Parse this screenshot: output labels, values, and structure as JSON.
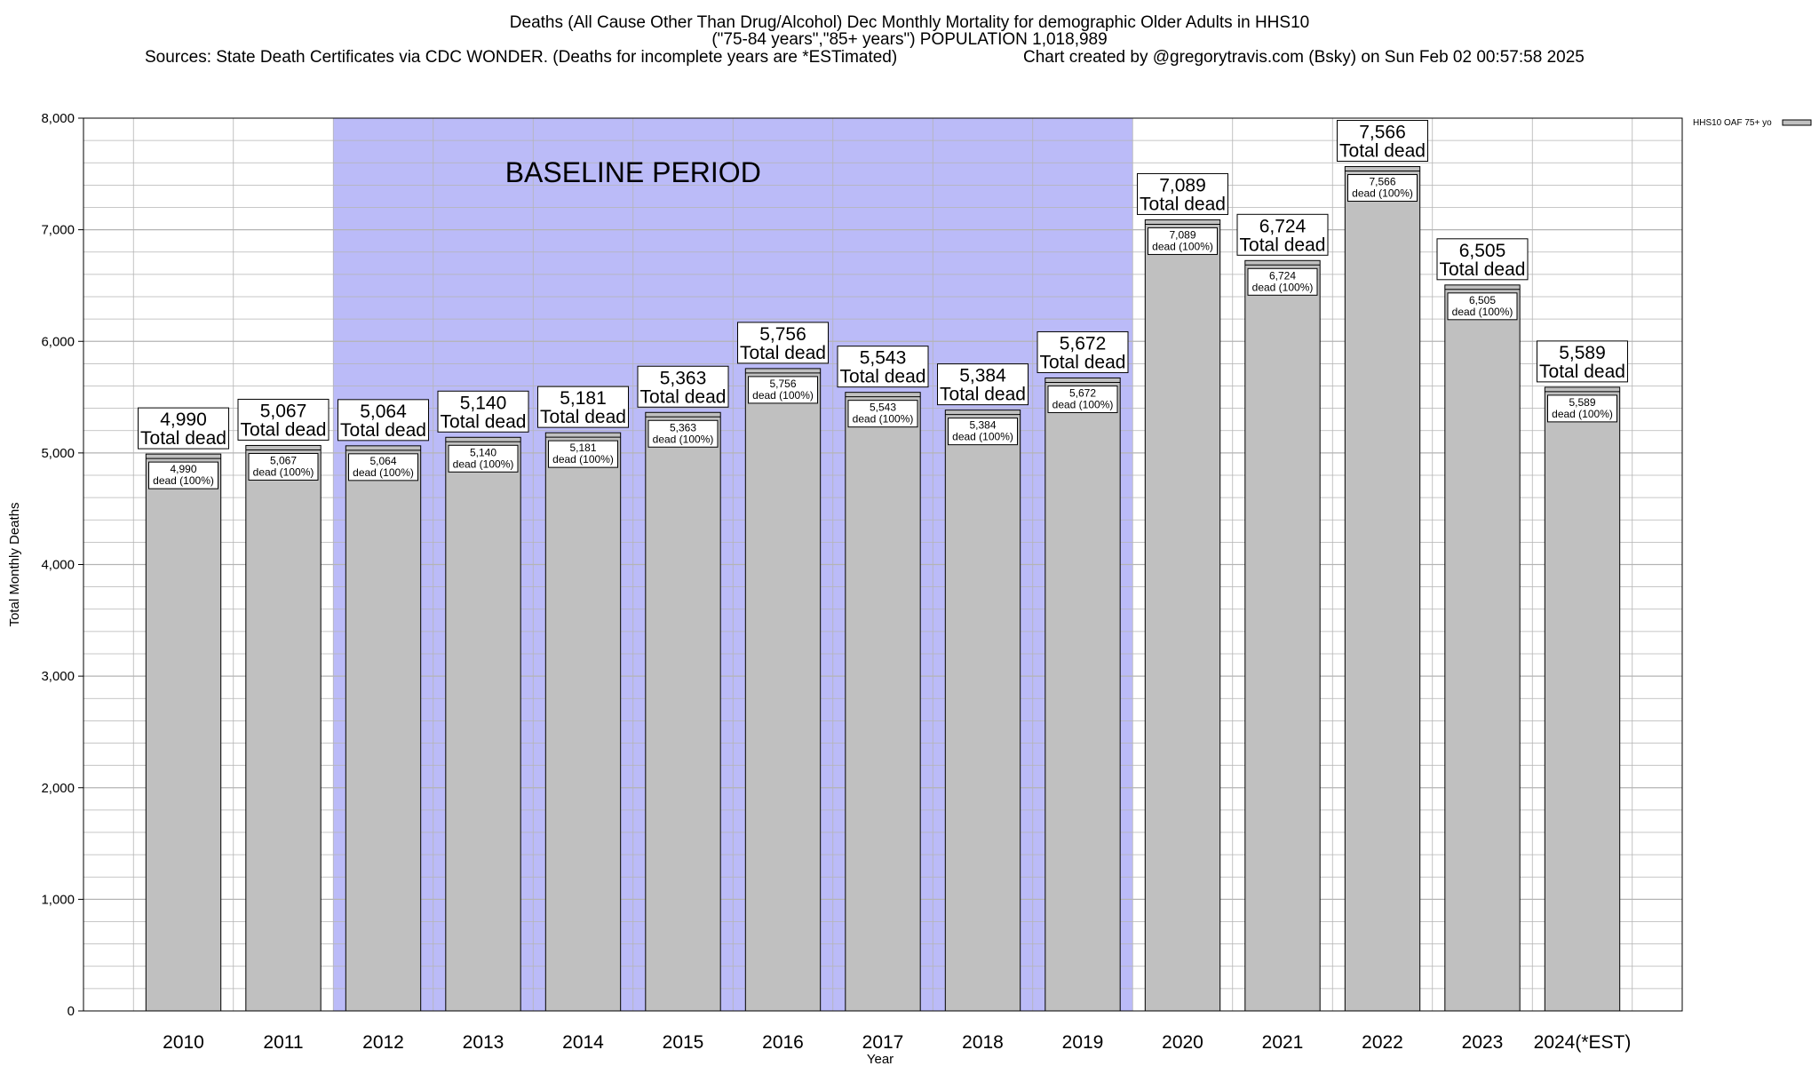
{
  "title_lines": [
    "Deaths (All Cause Other Than Drug/Alcohol) Dec Monthly Mortality for demographic Older Adults in HHS10",
    "(\"75-84 years\",\"85+ years\") POPULATION 1,018,989"
  ],
  "sources_text": "Sources: State Death Certificates via CDC WONDER. (Deaths for incomplete years are *ESTimated)",
  "credit_text": "Chart created by @gregorytravis.com (Bsky) on Sun Feb 02 00:57:58 2025",
  "colors": {
    "bar_fill": "#c0c0c0",
    "baseline_band": "#bbbbf8",
    "grid": "#b4b4b4"
  },
  "chart_data": {
    "type": "bar",
    "xlabel": "Year",
    "ylabel": "Total Monthly Deaths",
    "ylim": [
      0,
      8000
    ],
    "y_ticks": [
      0,
      1000,
      2000,
      3000,
      4000,
      5000,
      6000,
      7000,
      8000
    ],
    "y_tick_labels": [
      "0",
      "1,000",
      "2,000",
      "3,000",
      "4,000",
      "5,000",
      "6,000",
      "7,000",
      "8,000"
    ],
    "grid": true,
    "legend_position": "top-right",
    "categories": [
      "2010",
      "2011",
      "2012",
      "2013",
      "2014",
      "2015",
      "2016",
      "2017",
      "2018",
      "2019",
      "2020",
      "2021",
      "2022",
      "2023",
      "2024(*EST)"
    ],
    "series": [
      {
        "name": "HHS10 OAF 75+ yo",
        "values": [
          4990,
          5067,
          5064,
          5140,
          5181,
          5363,
          5756,
          5543,
          5384,
          5672,
          7089,
          6724,
          7566,
          6505,
          5589
        ]
      }
    ],
    "value_labels": [
      "4,990",
      "5,067",
      "5,064",
      "5,140",
      "5,181",
      "5,363",
      "5,756",
      "5,543",
      "5,384",
      "5,672",
      "7,089",
      "6,724",
      "7,566",
      "6,505",
      "5,589"
    ],
    "total_label": "Total dead",
    "inner_label": "dead (100%)",
    "baseline": {
      "label": "BASELINE PERIOD",
      "start": "2012",
      "end": "2019"
    }
  }
}
